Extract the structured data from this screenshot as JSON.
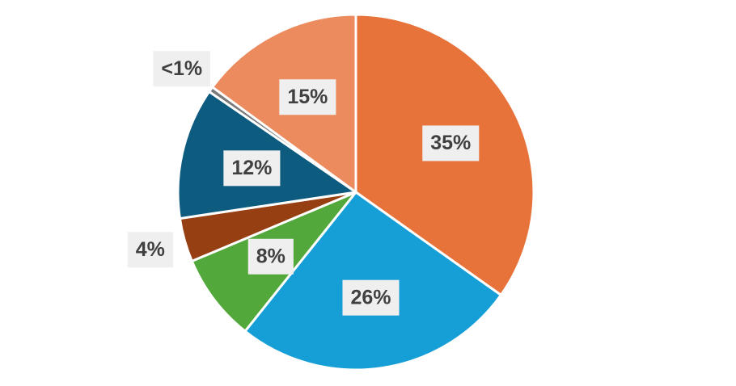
{
  "chart_data": {
    "type": "pie",
    "values": [
      35,
      26,
      8,
      4,
      12,
      0.5,
      15
    ],
    "value_labels": [
      "35%",
      "26%",
      "8%",
      "4%",
      "12%",
      "<1%",
      "15%"
    ],
    "colors": [
      "#e8733a",
      "#159fd6",
      "#52a83a",
      "#963f12",
      "#0d5c80",
      "#7a7a7a",
      "#ec8c5e"
    ]
  }
}
